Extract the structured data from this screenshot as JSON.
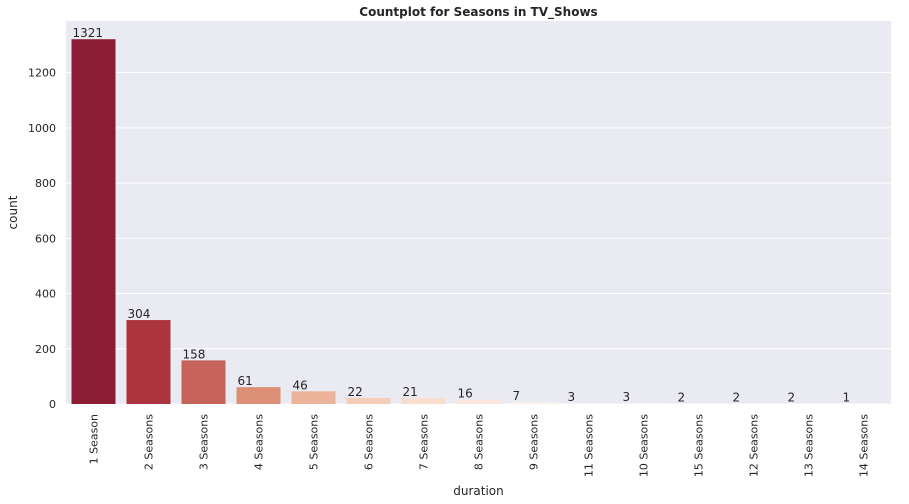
{
  "chart_data": {
    "type": "bar",
    "title": "Countplot for Seasons in TV_Shows",
    "xlabel": "duration",
    "ylabel": "count",
    "categories": [
      "1 Season",
      "2 Seasons",
      "3 Seasons",
      "4 Seasons",
      "5 Seasons",
      "6 Seasons",
      "7 Seasons",
      "8 Seasons",
      "9 Seasons",
      "11 Seasons",
      "10 Seasons",
      "15 Seasons",
      "12 Seasons",
      "13 Seasons",
      "14 Seasons"
    ],
    "values": [
      1321,
      304,
      158,
      61,
      46,
      22,
      21,
      16,
      7,
      3,
      3,
      2,
      2,
      2,
      1
    ],
    "ylim": [
      0,
      1387
    ],
    "yticks": [
      0,
      200,
      400,
      600,
      800,
      1000,
      1200
    ],
    "grid": true,
    "colors": [
      "#8b1c33",
      "#ab343f",
      "#c6635a",
      "#dc8f75",
      "#ebb49a",
      "#f4cdb8",
      "#f8dccc",
      "#fbe7de",
      "#fdf1ec",
      "#fef6f2",
      "#fef8f5",
      "#fefaf8",
      "#fefbfa",
      "#fefcfc",
      "#ffffff"
    ],
    "background": "#eaeaf2",
    "gridcolor": "#ffffff"
  }
}
